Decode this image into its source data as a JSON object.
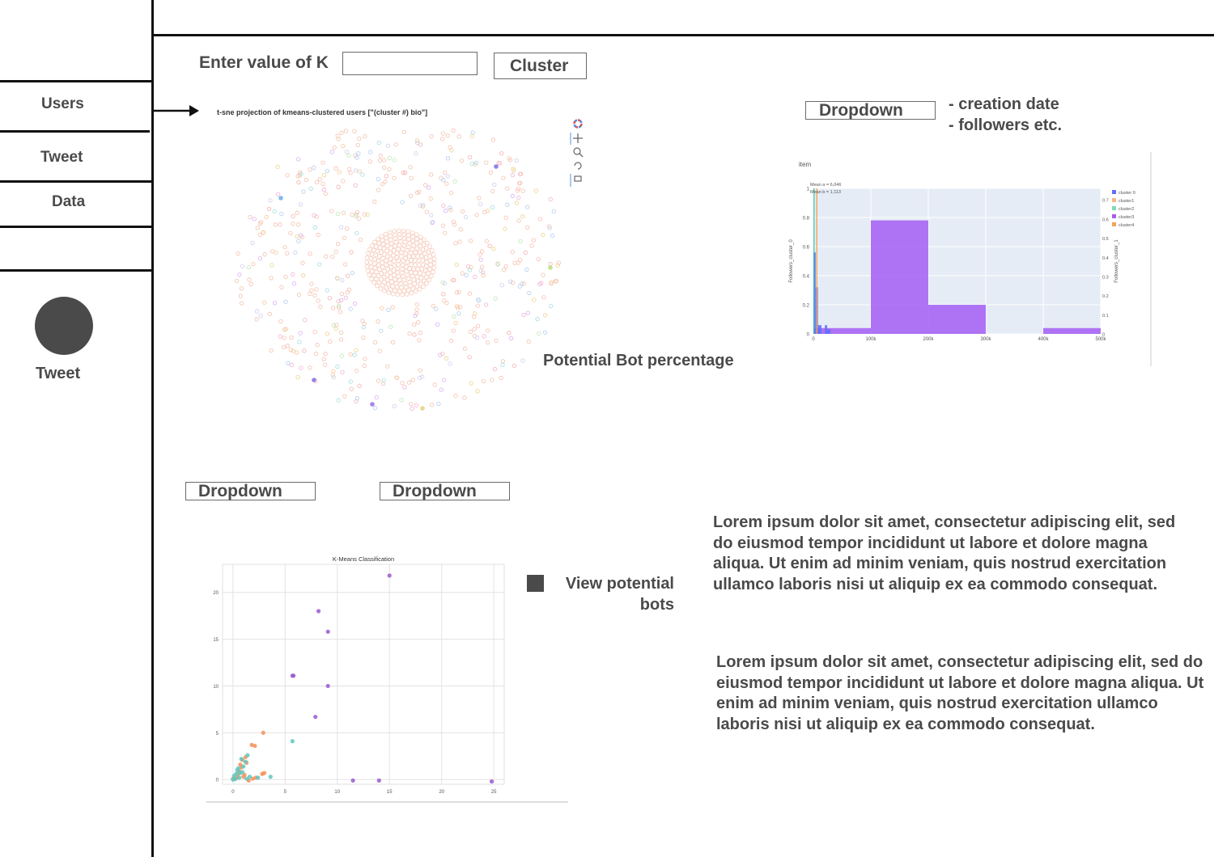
{
  "sidebar": {
    "items": [
      {
        "label": "Users"
      },
      {
        "label": "Tweet"
      },
      {
        "label": "Data"
      }
    ],
    "avatar_label": "Tweet"
  },
  "controls": {
    "k_label": "Enter value of K",
    "k_value": "",
    "cluster_button": "Cluster",
    "dropdown_top": "Dropdown",
    "dropdown_notes": [
      "- creation date",
      "- followers etc."
    ],
    "dropdown_left": "Dropdown",
    "dropdown_mid": "Dropdown",
    "view_bots_label": "View potential bots",
    "potential_bot_label": "Potential Bot percentage"
  },
  "paragraphs": [
    "Lorem ipsum dolor sit amet, consectetur adipiscing elit, sed do eiusmod tempor incididunt ut labore et dolore magna aliqua. Ut enim ad minim veniam, quis nostrud exercitation ullamco laboris nisi ut aliquip ex ea commodo consequat.",
    "Lorem ipsum dolor sit amet, consectetur adipiscing elit, sed do eiusmod tempor incididunt ut labore et dolore magna aliqua. Ut enim ad minim veniam, quis nostrud exercitation ullamco laboris nisi ut aliquip ex ea commodo consequat."
  ],
  "colors": {
    "line": "#111111",
    "text": "#4a4a4a",
    "avatar": "#4a4a4a",
    "purple": "#a55df3",
    "blue": "#636efa",
    "orange": "#f4a259",
    "teal": "#5ec8c0",
    "kmeans_purple": "#9b59d0",
    "kmeans_orange": "#f58f5a"
  },
  "chart_data": [
    {
      "type": "scatter",
      "title": "t-sne projection of kmeans-clustered users [\"(cluster #) bio\"]"
    },
    {
      "type": "bar",
      "title": "item",
      "ylabel": "Followers_cluster_0",
      "ylabel_right": "Followers_cluster_1",
      "annotations": [
        "Mean a = 6,046",
        "Mean b = 1,113"
      ],
      "x_ticks": [
        "0",
        "100k",
        "200k",
        "300k",
        "400k",
        "500k"
      ],
      "y_ticks": [
        "0",
        "0.2",
        "0.4",
        "0.6",
        "0.8",
        "1"
      ],
      "y_ticks_right": [
        "0",
        "0.1",
        "0.2",
        "0.3",
        "0.4",
        "0.5",
        "0.6",
        "0.7"
      ],
      "xlim": [
        0,
        500000
      ],
      "ylim": [
        0,
        1
      ],
      "legend": [
        "cluster 0",
        "cluster1",
        "cluster2",
        "cluster3",
        "cluster4"
      ],
      "legend_colors": [
        "#636efa",
        "#f9b58a",
        "#7fdcb6",
        "#a55df3",
        "#f4a259"
      ],
      "series": [
        {
          "name": "cluster3",
          "bins": [
            {
              "x0": 0,
              "x1": 100000,
              "y": 0.04
            },
            {
              "x0": 100000,
              "x1": 200000,
              "y": 0.78
            },
            {
              "x0": 200000,
              "x1": 300000,
              "y": 0.2
            },
            {
              "x0": 300000,
              "x1": 400000,
              "y": 0
            },
            {
              "x0": 400000,
              "x1": 500000,
              "y": 0.04
            }
          ]
        },
        {
          "name": "cluster 0",
          "bins": [
            {
              "x0": 0,
              "x1": 4000,
              "y": 0.56
            },
            {
              "x0": 4000,
              "x1": 8000,
              "y": 0.32
            },
            {
              "x0": 8000,
              "x1": 14000,
              "y": 0.06
            },
            {
              "x0": 20000,
              "x1": 24000,
              "y": 0.06
            },
            {
              "x0": 24000,
              "x1": 30000,
              "y": 0.03
            }
          ]
        }
      ]
    },
    {
      "type": "scatter",
      "title": "K-Means Classification",
      "x_ticks": [
        "0",
        "5",
        "10",
        "15",
        "20",
        "25"
      ],
      "y_ticks": [
        "0",
        "5",
        "10",
        "15",
        "20"
      ],
      "xlim": [
        -1,
        26
      ],
      "ylim": [
        -0.5,
        23
      ],
      "series": [
        {
          "name": "cluster-a",
          "points": [
            [
              15,
              21.8
            ],
            [
              8.2,
              18
            ],
            [
              9.1,
              15.8
            ],
            [
              5.7,
              11.1
            ],
            [
              5.8,
              11.1
            ],
            [
              9.1,
              10
            ],
            [
              7.9,
              6.7
            ],
            [
              11.5,
              -0.1
            ],
            [
              14,
              -0.1
            ],
            [
              24.8,
              -0.2
            ]
          ]
        },
        {
          "name": "cluster-b",
          "points": [
            [
              2.9,
              5
            ],
            [
              1.8,
              3.7
            ],
            [
              2.1,
              3.6
            ],
            [
              2.8,
              0.6
            ],
            [
              3,
              0.7
            ],
            [
              1.2,
              2.4
            ],
            [
              0.8,
              1.3
            ],
            [
              0.5,
              0.6
            ],
            [
              1.5,
              -0.1
            ],
            [
              1.0,
              0.3
            ],
            [
              0.2,
              0.1
            ],
            [
              0.7,
              1.6
            ],
            [
              1.9,
              0.1
            ],
            [
              0.4,
              0.2
            ],
            [
              1.3,
              1.8
            ],
            [
              0.6,
              0.9
            ],
            [
              1.1,
              0.5
            ],
            [
              0,
              0.1
            ],
            [
              0.9,
              2.1
            ],
            [
              2.2,
              0.2
            ]
          ]
        },
        {
          "name": "cluster-c",
          "points": [
            [
              5.7,
              4.1
            ],
            [
              3.6,
              0.3
            ],
            [
              1.4,
              2.6
            ],
            [
              1.2,
              1.9
            ],
            [
              0.8,
              2.2
            ],
            [
              1.0,
              1.4
            ],
            [
              0.5,
              1.2
            ],
            [
              0.3,
              0.6
            ],
            [
              0.1,
              0.4
            ],
            [
              0.6,
              0.2
            ],
            [
              1.3,
              0.1
            ],
            [
              0.2,
              0.05
            ],
            [
              0.7,
              0.7
            ],
            [
              0,
              0
            ],
            [
              2.4,
              0.2
            ],
            [
              1.6,
              0.3
            ],
            [
              0.4,
              1.0
            ],
            [
              0.9,
              0.8
            ]
          ]
        }
      ]
    }
  ]
}
